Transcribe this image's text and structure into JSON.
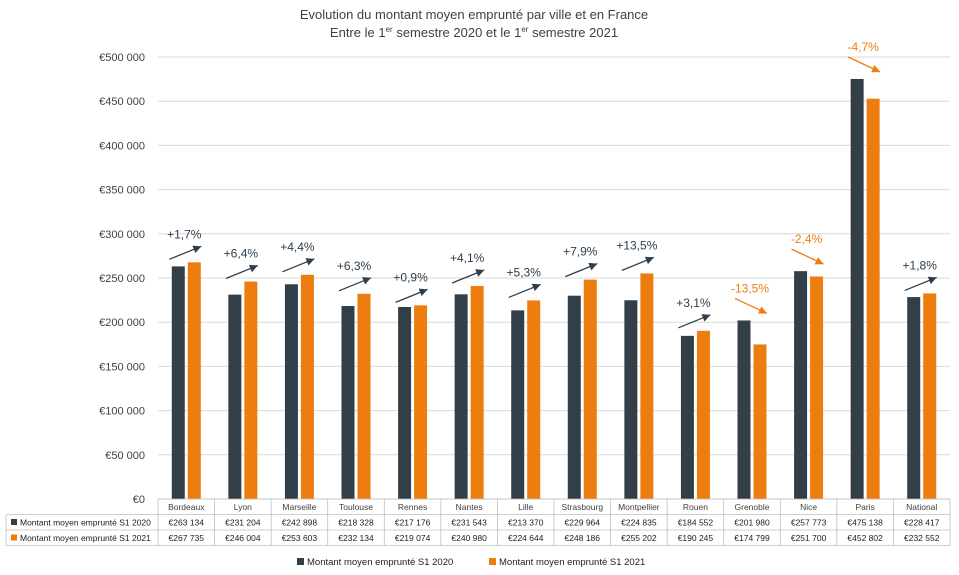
{
  "chart_data": {
    "type": "bar",
    "title": "Evolution du montant moyen emprunté par ville et en France",
    "subtitle_parts": [
      "Entre le 1",
      "er",
      " semestre 2020 et le 1",
      "er",
      " semestre 2021"
    ],
    "categories": [
      "Bordeaux",
      "Lyon",
      "Marseille",
      "Toulouse",
      "Rennes",
      "Nantes",
      "Lille",
      "Strasbourg",
      "Montpellier",
      "Rouen",
      "Grenoble",
      "Nice",
      "Paris",
      "National"
    ],
    "series": [
      {
        "name": "Montant moyen emprunté S1 2020",
        "color": "#333f48",
        "values": [
          263134,
          231204,
          242898,
          218328,
          217176,
          231543,
          213370,
          229964,
          224835,
          184552,
          201980,
          257773,
          475138,
          228417
        ],
        "labels": [
          "€263 134",
          "€231 204",
          "€242 898",
          "€218 328",
          "€217 176",
          "€231 543",
          "€213 370",
          "€229 964",
          "€224 835",
          "€184 552",
          "€201 980",
          "€257 773",
          "€475 138",
          "€228 417"
        ]
      },
      {
        "name": "Montant moyen emprunté S1 2021",
        "color": "#ed7d0f",
        "values": [
          267735,
          246004,
          253603,
          232134,
          219074,
          240980,
          224644,
          248186,
          255202,
          190245,
          174799,
          251700,
          452802,
          232552
        ],
        "labels": [
          "€267 735",
          "€246 004",
          "€253 603",
          "€232 134",
          "€219 074",
          "€240 980",
          "€224 644",
          "€248 186",
          "€255 202",
          "€190 245",
          "€174 799",
          "€251 700",
          "€452 802",
          "€232 552"
        ]
      }
    ],
    "changes": [
      "+1,7%",
      "+6,4%",
      "+4,4%",
      "+6,3%",
      "+0,9%",
      "+4,1%",
      "+5,3%",
      "+7,9%",
      "+13,5%",
      "+3,1%",
      "-13,5%",
      "-2,4%",
      "-4,7%",
      "+1,8%"
    ],
    "ylim": [
      0,
      500000
    ],
    "yticks": [
      0,
      50000,
      100000,
      150000,
      200000,
      250000,
      300000,
      350000,
      400000,
      450000,
      500000
    ],
    "ytick_labels": [
      "€0",
      "€50 000",
      "€100 000",
      "€150 000",
      "€200 000",
      "€250 000",
      "€300 000",
      "€350 000",
      "€400 000",
      "€450 000",
      "€500 000"
    ],
    "legend_position": "bottom",
    "data_table": true,
    "colors": {
      "up": "#2e3e4c",
      "down": "#ed7d0f",
      "grid": "#d9d9d9"
    }
  }
}
